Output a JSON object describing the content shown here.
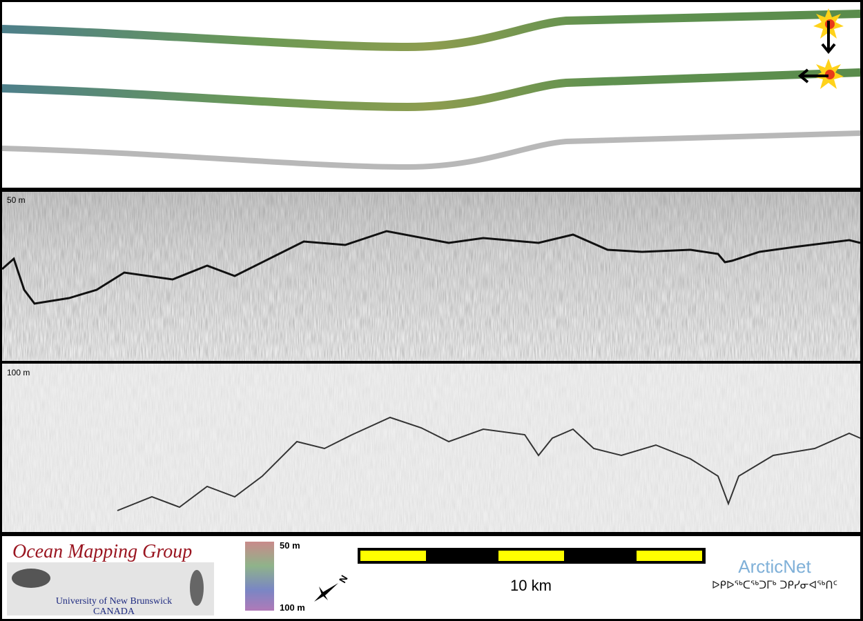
{
  "profiles": {
    "upper_label": "50 m",
    "lower_label": "100 m"
  },
  "footer": {
    "logo": {
      "title": "Ocean Mapping Group",
      "university": "University of New Brunswick",
      "country": "CANADA"
    },
    "colorbar": {
      "top_label": "50 m",
      "bottom_label": "100 m"
    },
    "compass_label": "N",
    "scale_bar_label": "10 km",
    "partner": {
      "name": "ArcticNet",
      "name_inuktitut": "ᐅᑭᐅᖅᑕᖅᑐᒥᒃ ᑐᑭᓯᓂᐊᖅᑎᑦ"
    }
  }
}
